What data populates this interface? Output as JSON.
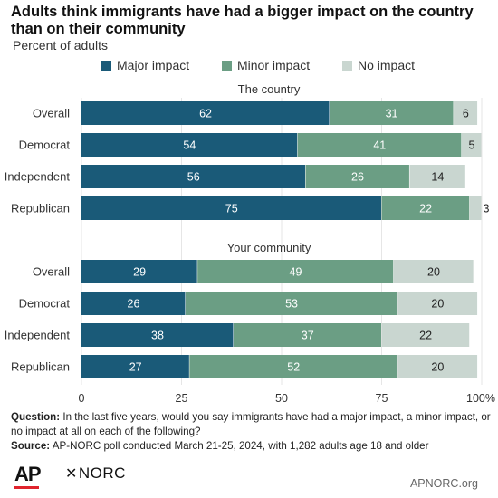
{
  "title": "Adults think immigrants have had a bigger impact on the country than on their community",
  "subtitle": "Percent of adults",
  "colors": {
    "major": "#1a5a78",
    "minor": "#6b9e84",
    "none": "#c9d6d0"
  },
  "legend": [
    {
      "key": "major",
      "label": "Major impact"
    },
    {
      "key": "minor",
      "label": "Minor impact"
    },
    {
      "key": "none",
      "label": "No impact"
    }
  ],
  "chart_data": {
    "type": "bar",
    "orientation": "horizontal",
    "stacked": true,
    "xlim": [
      0,
      100
    ],
    "x_ticks": [
      "0",
      "25",
      "50",
      "75",
      "100%"
    ],
    "series": [
      {
        "name": "Major impact",
        "key": "major"
      },
      {
        "name": "Minor impact",
        "key": "minor"
      },
      {
        "name": "No impact",
        "key": "none"
      }
    ],
    "panels": [
      {
        "title": "The country",
        "categories": [
          "Overall",
          "Democrat",
          "Independent",
          "Republican"
        ],
        "values": {
          "major": [
            62,
            54,
            56,
            75
          ],
          "minor": [
            31,
            41,
            26,
            22
          ],
          "none": [
            6,
            5,
            14,
            3
          ]
        }
      },
      {
        "title": "Your community",
        "categories": [
          "Overall",
          "Democrat",
          "Independent",
          "Republican"
        ],
        "values": {
          "major": [
            29,
            26,
            38,
            27
          ],
          "minor": [
            49,
            53,
            37,
            52
          ],
          "none": [
            20,
            20,
            22,
            20
          ]
        }
      }
    ]
  },
  "footer": {
    "question_label": "Question:",
    "question": "In the last five years, would you say immigrants have had a major impact, a minor impact, or no impact at all on each of the following?",
    "source_label": "Source:",
    "source": "AP-NORC poll conducted March 21-25, 2024, with 1,282 adults age 18 and older"
  },
  "logos": {
    "ap": "AP",
    "norc": "NORC",
    "norc_icon": "norc-star-icon"
  },
  "website": "APNORC.org"
}
